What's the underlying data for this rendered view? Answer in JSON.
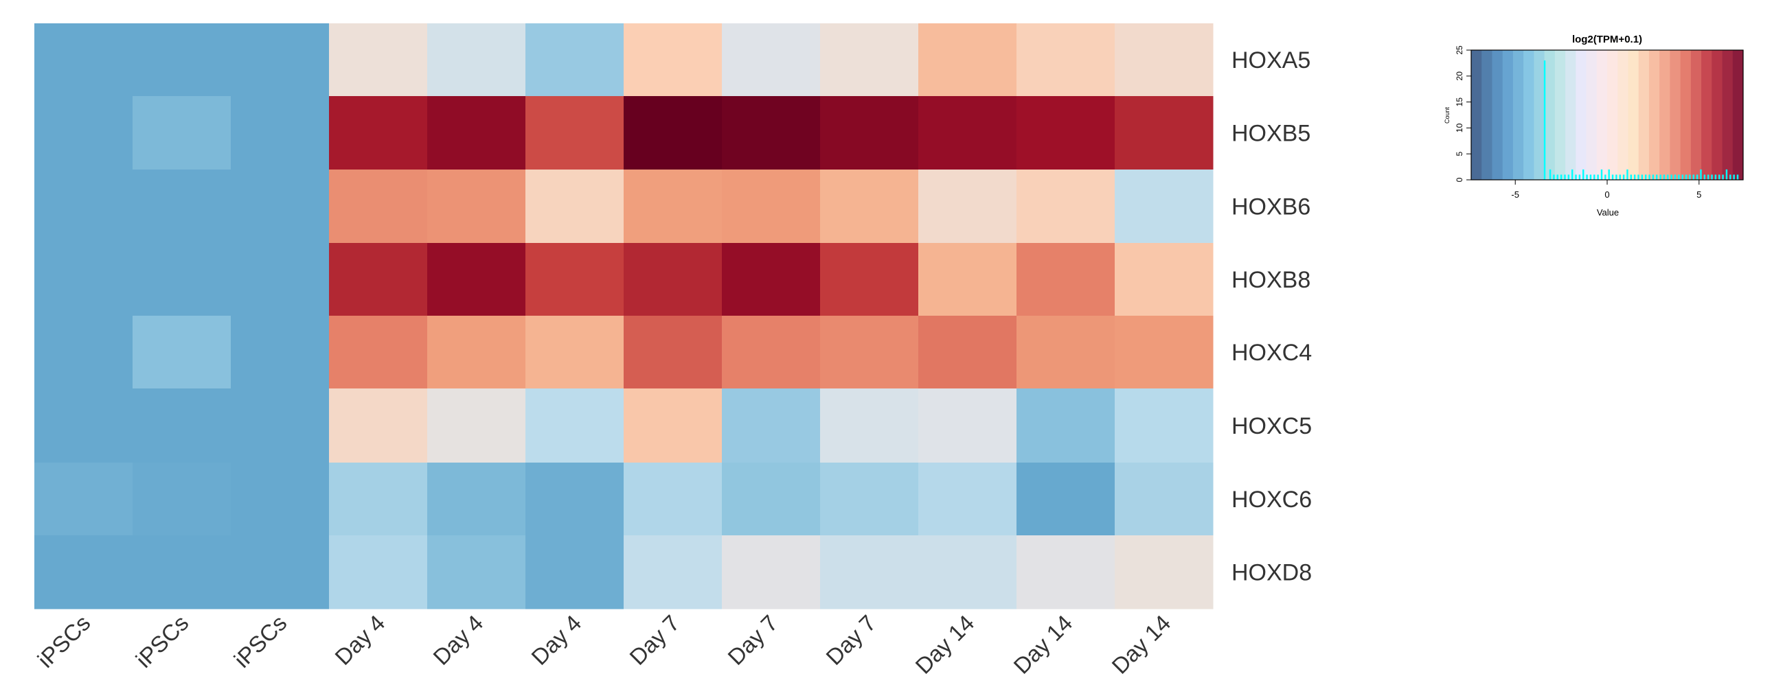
{
  "chart_data": [
    {
      "type": "heatmap",
      "rows": [
        "HOXA5",
        "HOXB5",
        "HOXB6",
        "HOXB8",
        "HOXC4",
        "HOXC5",
        "HOXC6",
        "HOXD8"
      ],
      "columns": [
        "iPSCs",
        "iPSCs",
        "iPSCs",
        "Day 4",
        "Day 4",
        "Day 4",
        "Day 7",
        "Day 7",
        "Day 7",
        "Day 14",
        "Day 14",
        "Day 14"
      ],
      "values": [
        [
          -6.5,
          -6.5,
          -6.5,
          0.5,
          -1.0,
          -3.5,
          2.0,
          -0.5,
          0.5,
          2.5,
          1.8,
          1.0
        ],
        [
          -6.5,
          -5.0,
          -6.5,
          5.8,
          6.3,
          4.8,
          7.2,
          7.0,
          6.5,
          6.2,
          6.0,
          5.5
        ],
        [
          -6.5,
          -6.5,
          -6.5,
          3.6,
          3.5,
          1.6,
          3.2,
          3.3,
          2.7,
          1.0,
          1.8,
          -1.8
        ],
        [
          -6.5,
          -6.5,
          -6.5,
          5.5,
          6.2,
          5.0,
          5.5,
          6.2,
          5.1,
          2.7,
          3.9,
          2.2
        ],
        [
          -6.5,
          -4.2,
          -6.5,
          3.9,
          3.2,
          2.7,
          4.5,
          3.9,
          3.7,
          4.1,
          3.4,
          3.3
        ],
        [
          -6.5,
          -6.5,
          -6.5,
          1.2,
          0.0,
          -2.0,
          2.2,
          -3.5,
          -0.8,
          -0.5,
          -4.2,
          -2.2
        ],
        [
          -5.8,
          -6.3,
          -6.5,
          -3.0,
          -5.0,
          -6.0,
          -2.5,
          -3.8,
          -3.0,
          -2.3,
          -6.5,
          -2.8
        ],
        [
          -6.5,
          -6.5,
          -6.5,
          -2.5,
          -4.3,
          -6.0,
          -1.7,
          -0.3,
          -1.3,
          -1.3,
          -0.3,
          0.3
        ]
      ],
      "color_scale": [
        "#4a6b96",
        "#5f9ccc",
        "#86c6e4",
        "#b9e6e4",
        "#e8e8fa",
        "#fde8e8",
        "#fde5c8",
        "#f5b49a",
        "#e47d6e",
        "#c03b4a",
        "#8a1c3c"
      ],
      "ticks_cell_colors": {
        "low": "#67a9cf",
        "mid": "#f7f7f7",
        "high": "#67001f"
      },
      "vmin": -6.5,
      "vmax": 7.2
    },
    {
      "type": "bar",
      "title": "log2(TPM+0.1)",
      "xlabel": "Value",
      "ylabel": "Count",
      "xticks": [
        "-5",
        "0",
        "5"
      ],
      "yticks": [
        "0",
        "5",
        "10",
        "15",
        "20",
        "25"
      ],
      "xlim": [
        -7.4,
        7.4
      ],
      "ylim": [
        0,
        25
      ],
      "x": [
        -3.4,
        -3.1,
        -2.9,
        -2.7,
        -2.5,
        -2.3,
        -2.1,
        -1.9,
        -1.7,
        -1.5,
        -1.3,
        -1.1,
        -0.9,
        -0.7,
        -0.5,
        -0.3,
        -0.1,
        0.1,
        0.3,
        0.5,
        0.7,
        0.9,
        1.1,
        1.3,
        1.5,
        1.7,
        1.9,
        2.1,
        2.3,
        2.5,
        2.7,
        2.9,
        3.1,
        3.3,
        3.5,
        3.7,
        3.9,
        4.1,
        4.3,
        4.5,
        4.7,
        4.9,
        5.1,
        5.3,
        5.5,
        5.7,
        5.9,
        6.1,
        6.3,
        6.5,
        6.7,
        6.9,
        7.1
      ],
      "values": [
        23,
        2,
        1,
        1,
        1,
        1,
        1,
        2,
        1,
        1,
        2,
        1,
        1,
        1,
        1,
        2,
        1,
        2,
        1,
        1,
        1,
        1,
        2,
        1,
        1,
        1,
        1,
        1,
        1,
        1,
        1,
        1,
        1,
        1,
        1,
        1,
        1,
        1,
        1,
        1,
        1,
        1,
        2,
        1,
        1,
        1,
        1,
        1,
        1,
        2,
        1,
        1,
        1
      ],
      "bar_color": "#00ffff"
    }
  ]
}
